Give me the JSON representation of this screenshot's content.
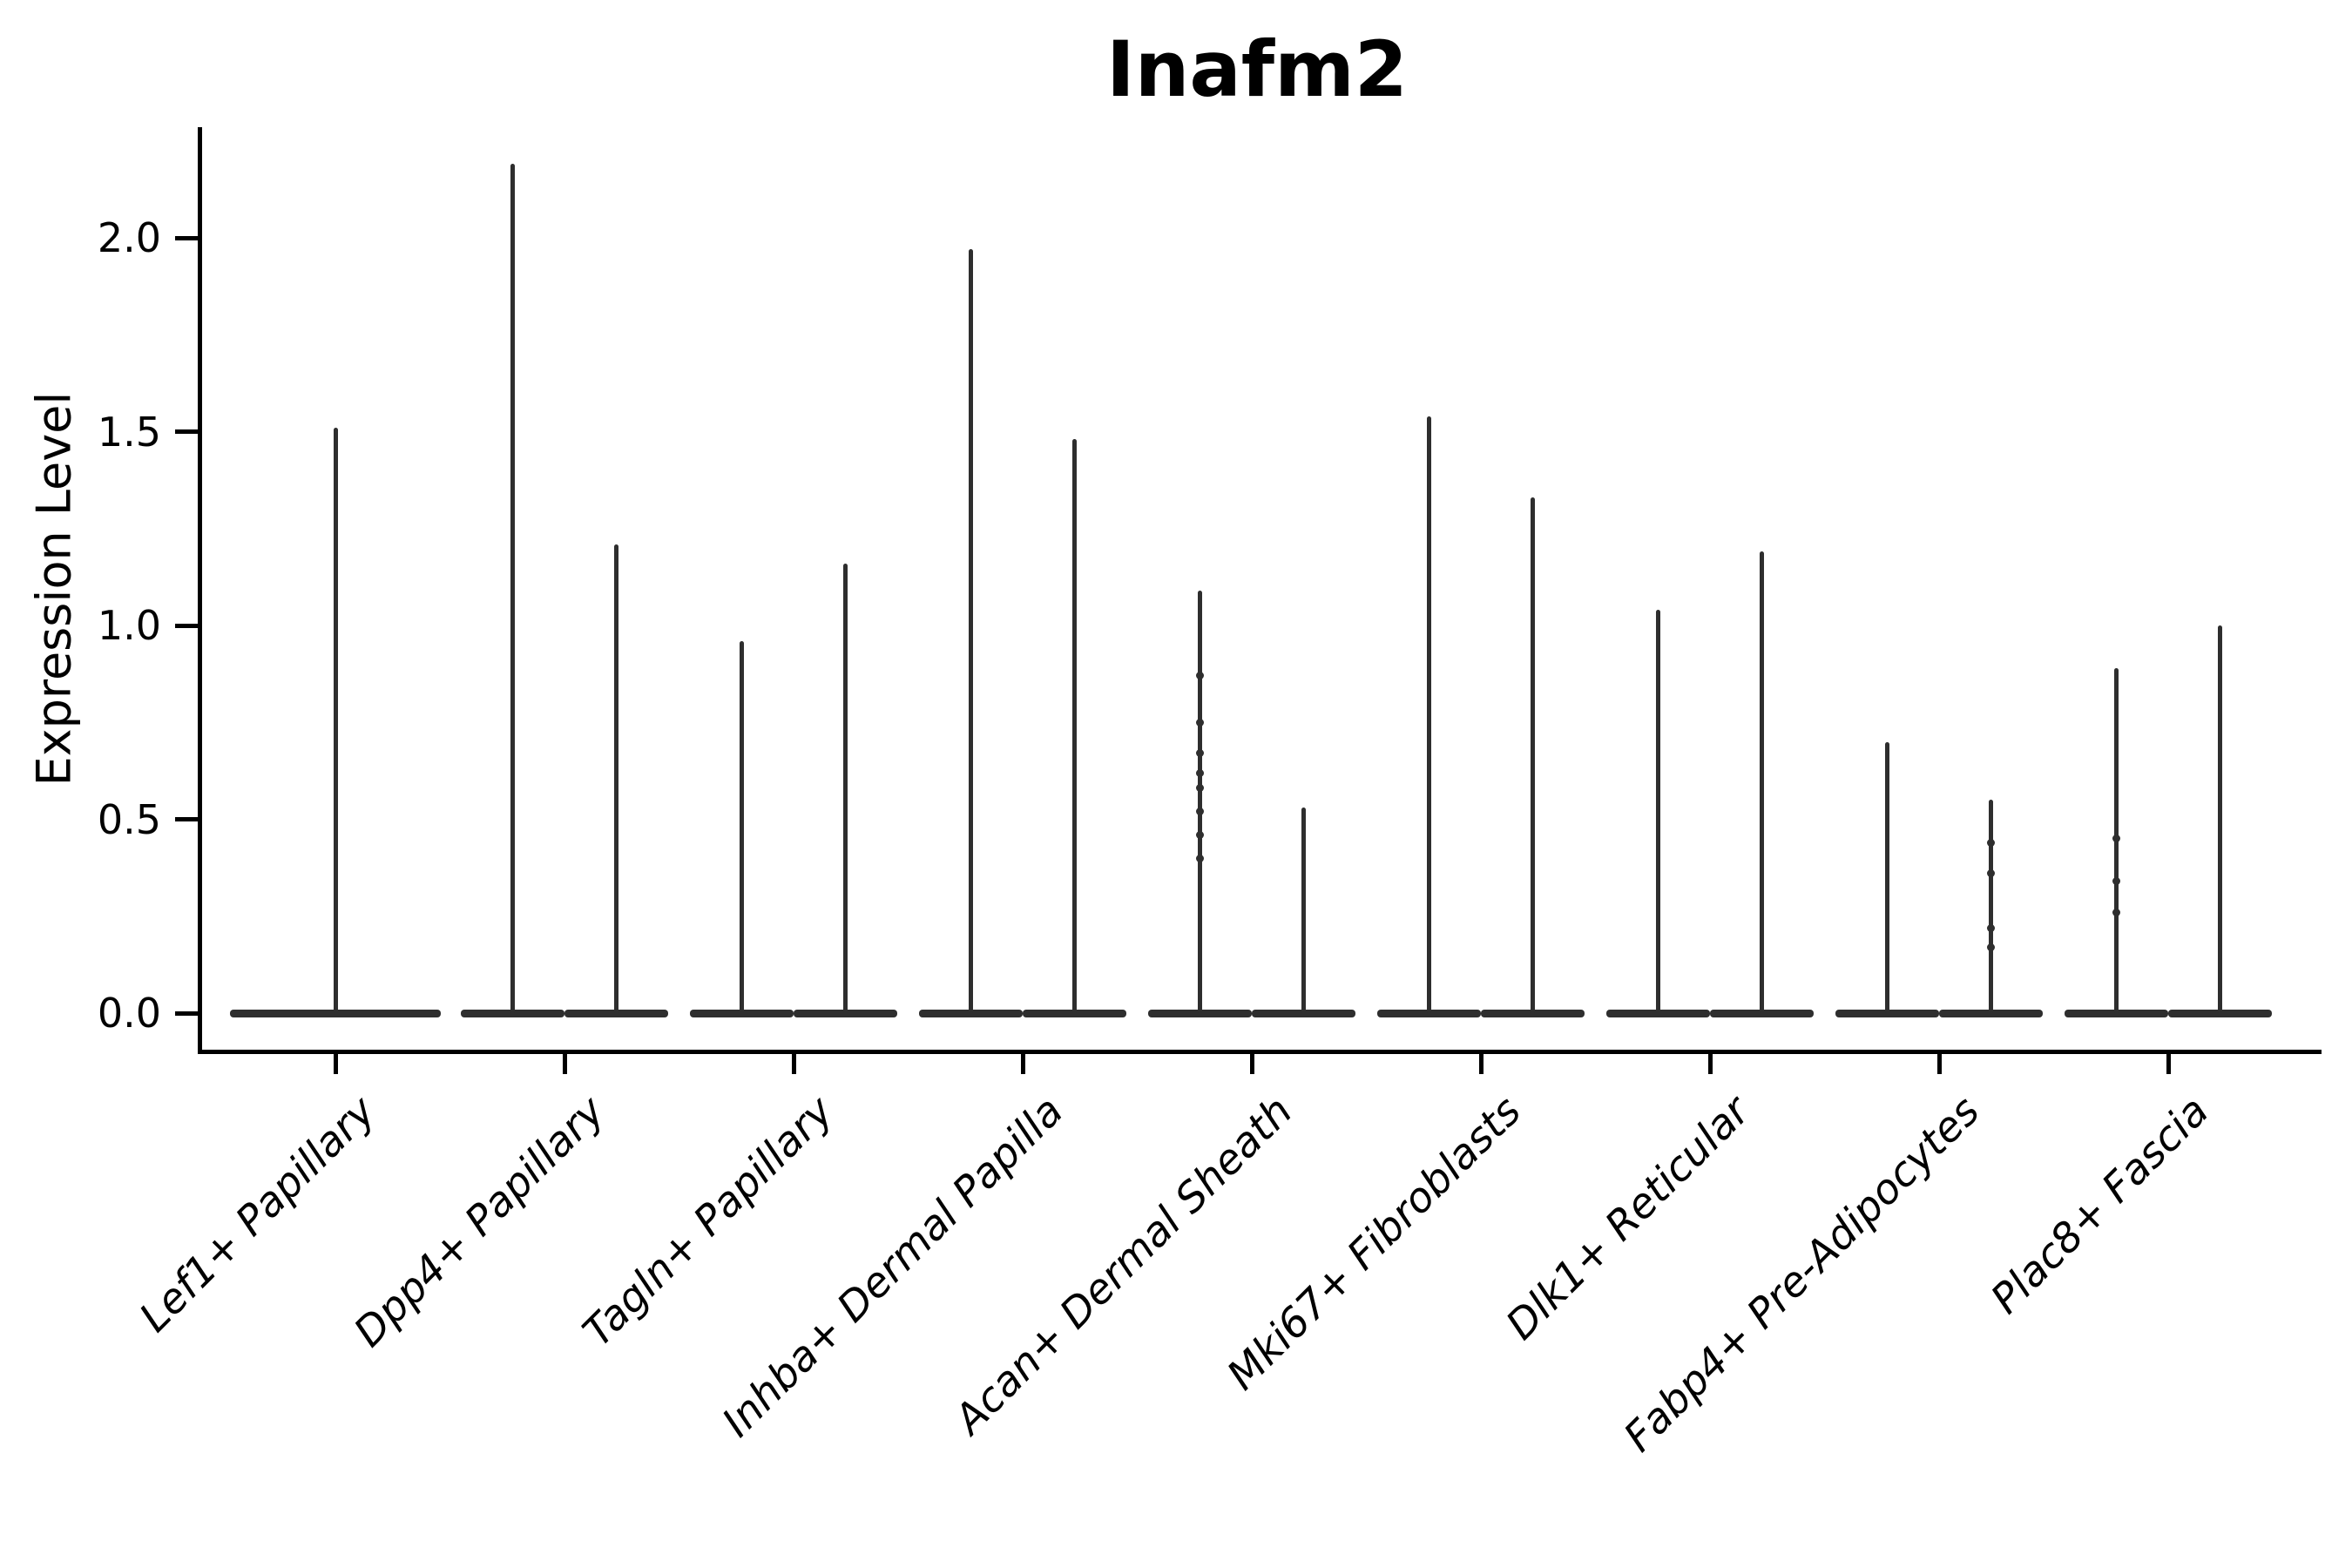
{
  "title": "Inafm2",
  "axes": {
    "ylabel": "Expression Level",
    "ytick_labels": [
      "0.0",
      "0.5",
      "1.0",
      "1.5",
      "2.0"
    ],
    "ytick_values": [
      0.0,
      0.5,
      1.0,
      1.5,
      2.0
    ]
  },
  "colors": {
    "violin": "#2e2e2e",
    "axis": "#000000",
    "text": "#000000",
    "background": "#ffffff"
  },
  "chart_data": {
    "type": "violin",
    "title": "Inafm2",
    "xlabel": "",
    "ylabel": "Expression Level",
    "ylim": [
      -0.09,
      2.29
    ],
    "yticks": [
      0.0,
      0.5,
      1.0,
      1.5,
      2.0
    ],
    "grid": false,
    "legend": "none",
    "baseline_value": 0.0,
    "description": "Single-cell expression violin plot; each category shows flat density at 0 with thin spikes up to the maximum expression. Categories 2-9 contain two side-by-side violins; category 1 has one centered violin.",
    "categories": [
      "Lef1+ Papillary",
      "Dpp4+ Papillary",
      "Tagln+ Papillary",
      "Inhba+ Dermal Papilla",
      "Acan+ Dermal Sheath",
      "Mki67+ Fibroblasts",
      "Dlk1+ Reticular",
      "Fabp4+ Pre-Adipocytes",
      "Plac8+ Fascia"
    ],
    "violins": [
      {
        "category": "Lef1+ Papillary",
        "spikes": [
          {
            "position": "center",
            "max": 1.51,
            "points": []
          }
        ]
      },
      {
        "category": "Dpp4+ Papillary",
        "spikes": [
          {
            "position": "left",
            "max": 2.19,
            "points": []
          },
          {
            "position": "right",
            "max": 1.21,
            "points": []
          }
        ]
      },
      {
        "category": "Tagln+ Papillary",
        "spikes": [
          {
            "position": "left",
            "max": 0.96,
            "points": []
          },
          {
            "position": "right",
            "max": 1.16,
            "points": []
          }
        ]
      },
      {
        "category": "Inhba+ Dermal Papilla",
        "spikes": [
          {
            "position": "left",
            "max": 1.97,
            "points": []
          },
          {
            "position": "right",
            "max": 1.48,
            "points": []
          }
        ]
      },
      {
        "category": "Acan+ Dermal Sheath",
        "spikes": [
          {
            "position": "left",
            "max": 1.09,
            "points": [
              0.87,
              0.75,
              0.67,
              0.62,
              0.58,
              0.52,
              0.46,
              0.4
            ]
          },
          {
            "position": "right",
            "max": 0.53,
            "points": []
          }
        ]
      },
      {
        "category": "Mki67+ Fibroblasts",
        "spikes": [
          {
            "position": "left",
            "max": 1.54,
            "points": []
          },
          {
            "position": "right",
            "max": 1.33,
            "points": []
          }
        ]
      },
      {
        "category": "Dlk1+ Reticular",
        "spikes": [
          {
            "position": "left",
            "max": 1.04,
            "points": []
          },
          {
            "position": "right",
            "max": 1.19,
            "points": []
          }
        ]
      },
      {
        "category": "Fabp4+ Pre-Adipocytes",
        "spikes": [
          {
            "position": "left",
            "max": 0.7,
            "points": []
          },
          {
            "position": "right",
            "max": 0.55,
            "points": [
              0.44,
              0.36,
              0.22,
              0.17
            ]
          }
        ]
      },
      {
        "category": "Plac8+ Fascia",
        "spikes": [
          {
            "position": "left",
            "max": 0.89,
            "points": [
              0.45,
              0.34,
              0.26
            ]
          },
          {
            "position": "right",
            "max": 1.0,
            "points": []
          }
        ]
      }
    ]
  }
}
